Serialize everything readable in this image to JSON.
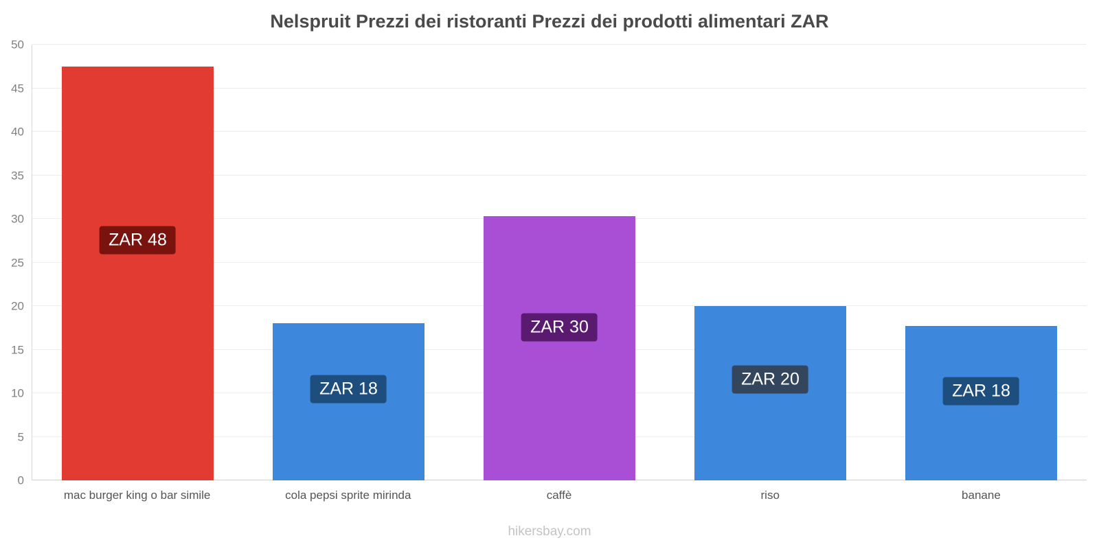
{
  "chart_data": {
    "type": "bar",
    "title": "Nelspruit Prezzi dei ristoranti Prezzi dei prodotti alimentari ZAR",
    "categories": [
      "mac burger king o bar simile",
      "cola pepsi sprite mirinda",
      "caffè",
      "riso",
      "banane"
    ],
    "values": [
      47.5,
      18,
      30.3,
      20,
      17.7
    ],
    "value_labels": [
      "ZAR 48",
      "ZAR 18",
      "ZAR 30",
      "ZAR 20",
      "ZAR 18"
    ],
    "bar_colors": [
      "#e23b32",
      "#3d88dd",
      "#a84fd6",
      "#3d88dd",
      "#3d88dd"
    ],
    "label_bg_colors": [
      "#7a120e",
      "#1d4e7e",
      "#5a1a70",
      "#33465e",
      "#1d4e7e"
    ],
    "xlabel": "",
    "ylabel": "",
    "ylim": [
      0,
      50
    ],
    "yticks": [
      0,
      5,
      10,
      15,
      20,
      25,
      30,
      35,
      40,
      45,
      50
    ],
    "grid": true,
    "legend": false
  },
  "footer": {
    "text": "hikersbay.com"
  }
}
